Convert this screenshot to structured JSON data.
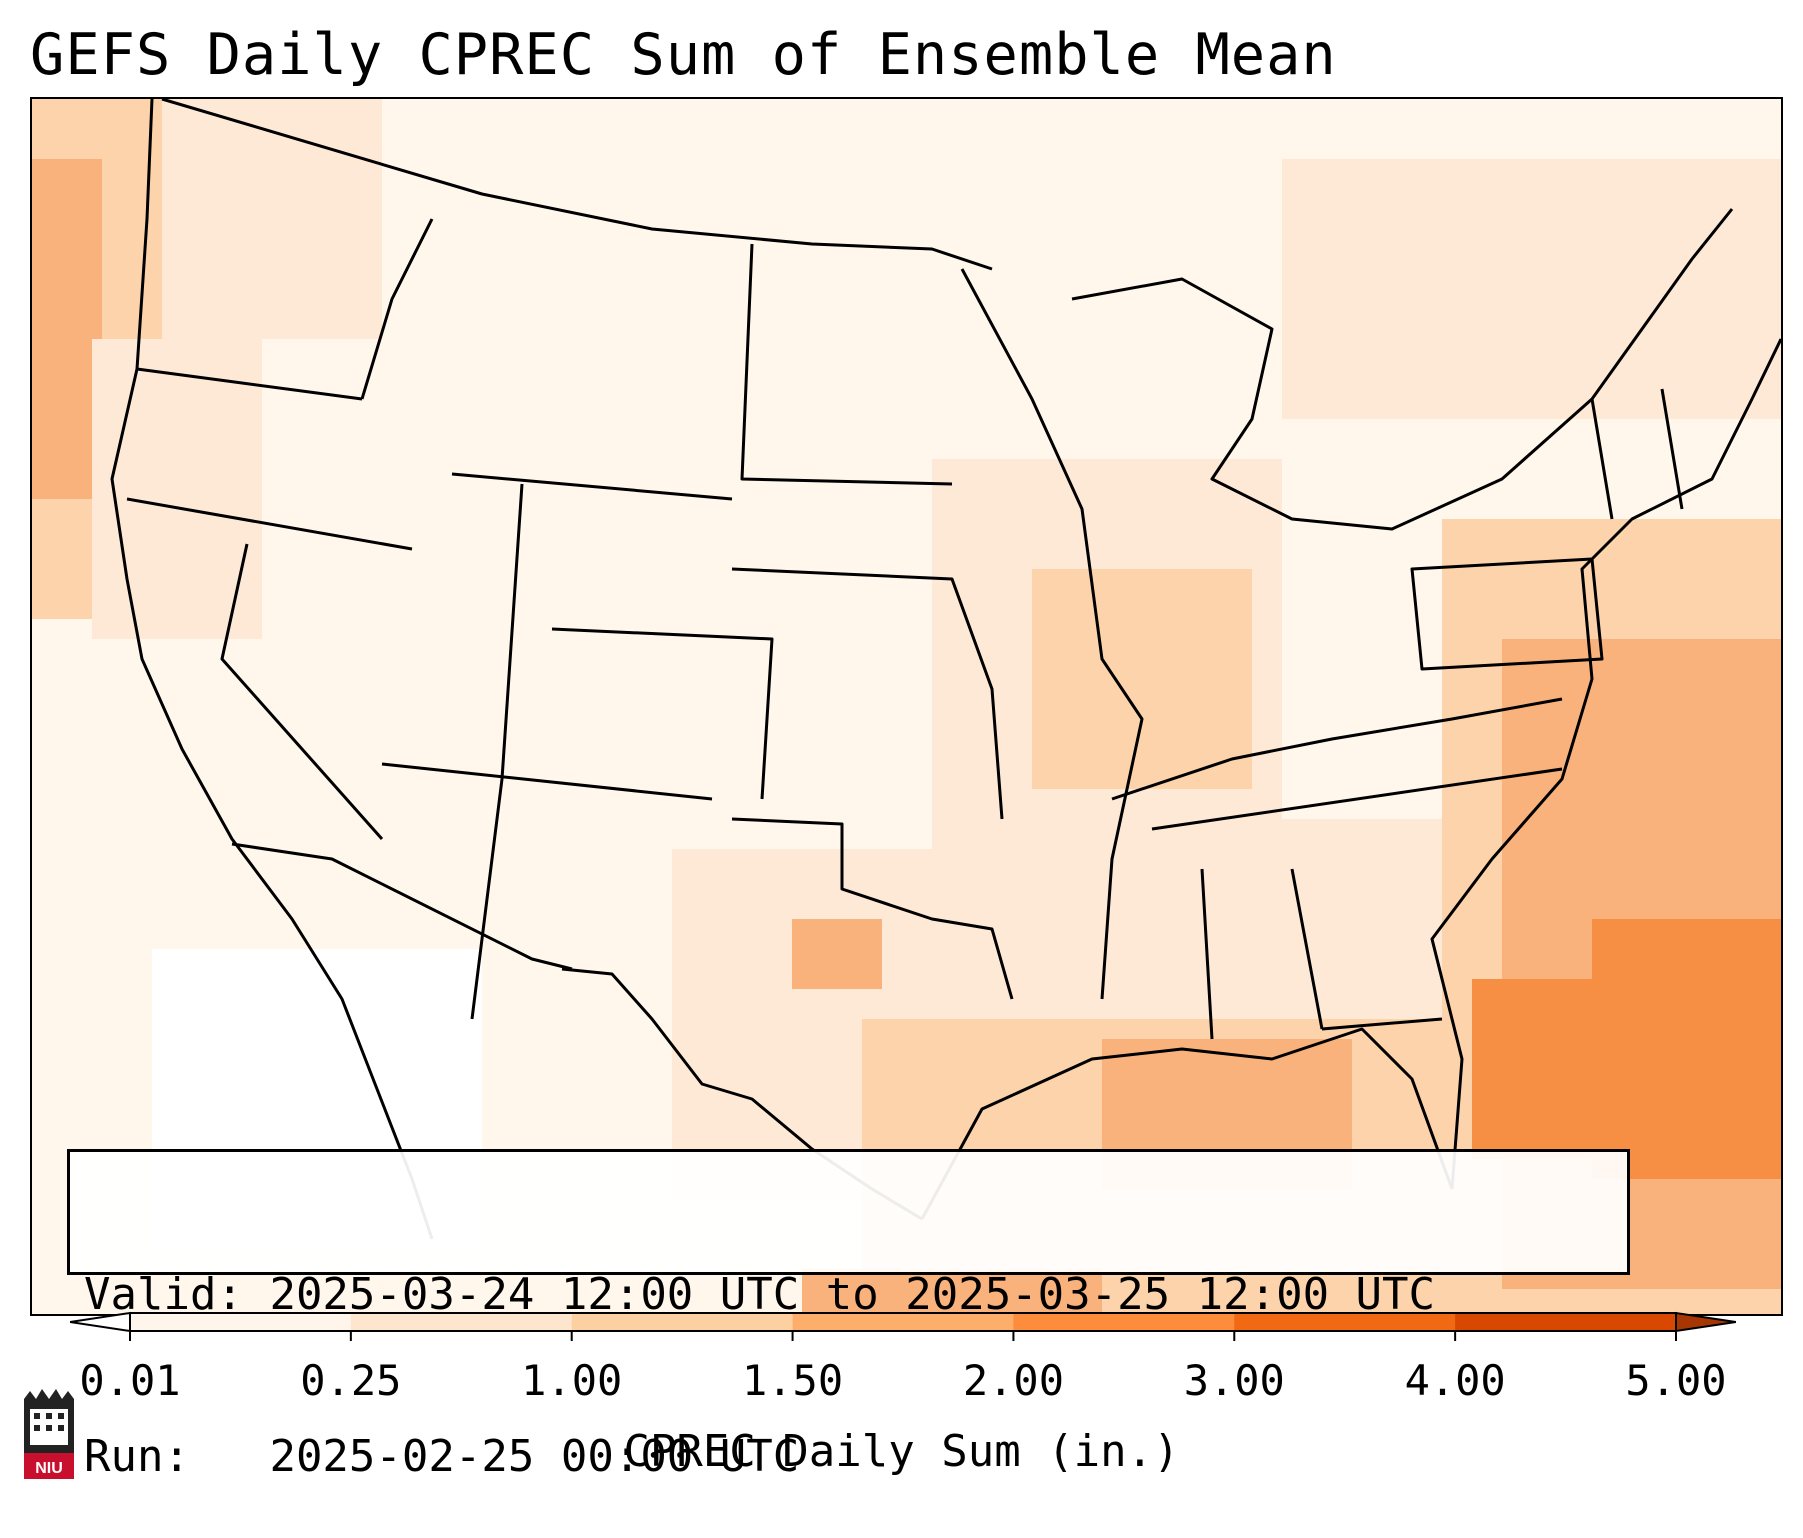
{
  "title": "GEFS Daily CPREC Sum of Ensemble Mean",
  "info": {
    "valid_label": "Valid:",
    "valid_value": "2025-03-24 12:00 UTC to 2025-03-25 12:00 UTC",
    "run_label": "Run:",
    "run_value": "2025-02-25 00:00 UTC"
  },
  "colorbar": {
    "label": "CPREC Daily Sum (in.)",
    "ticks": [
      "0.01",
      "0.25",
      "1.00",
      "1.50",
      "2.00",
      "3.00",
      "4.00",
      "5.00"
    ],
    "colors": [
      "#fff5eb",
      "#fee6ce",
      "#fdd0a2",
      "#fdae6b",
      "#fd8d3c",
      "#f16913",
      "#d94801",
      "#a63603"
    ],
    "under_color": "#ffffff",
    "over_color": "#7f2704"
  },
  "map": {
    "region": "Contiguous United States",
    "field_colors": {
      "background": "#fff6ec",
      "light": "#fde9d6",
      "medium": "#fcd3aa",
      "strong": "#f9b27c",
      "heavy": "#f68e44"
    }
  },
  "logo": {
    "text": "NIU",
    "color": "#c8102e"
  }
}
